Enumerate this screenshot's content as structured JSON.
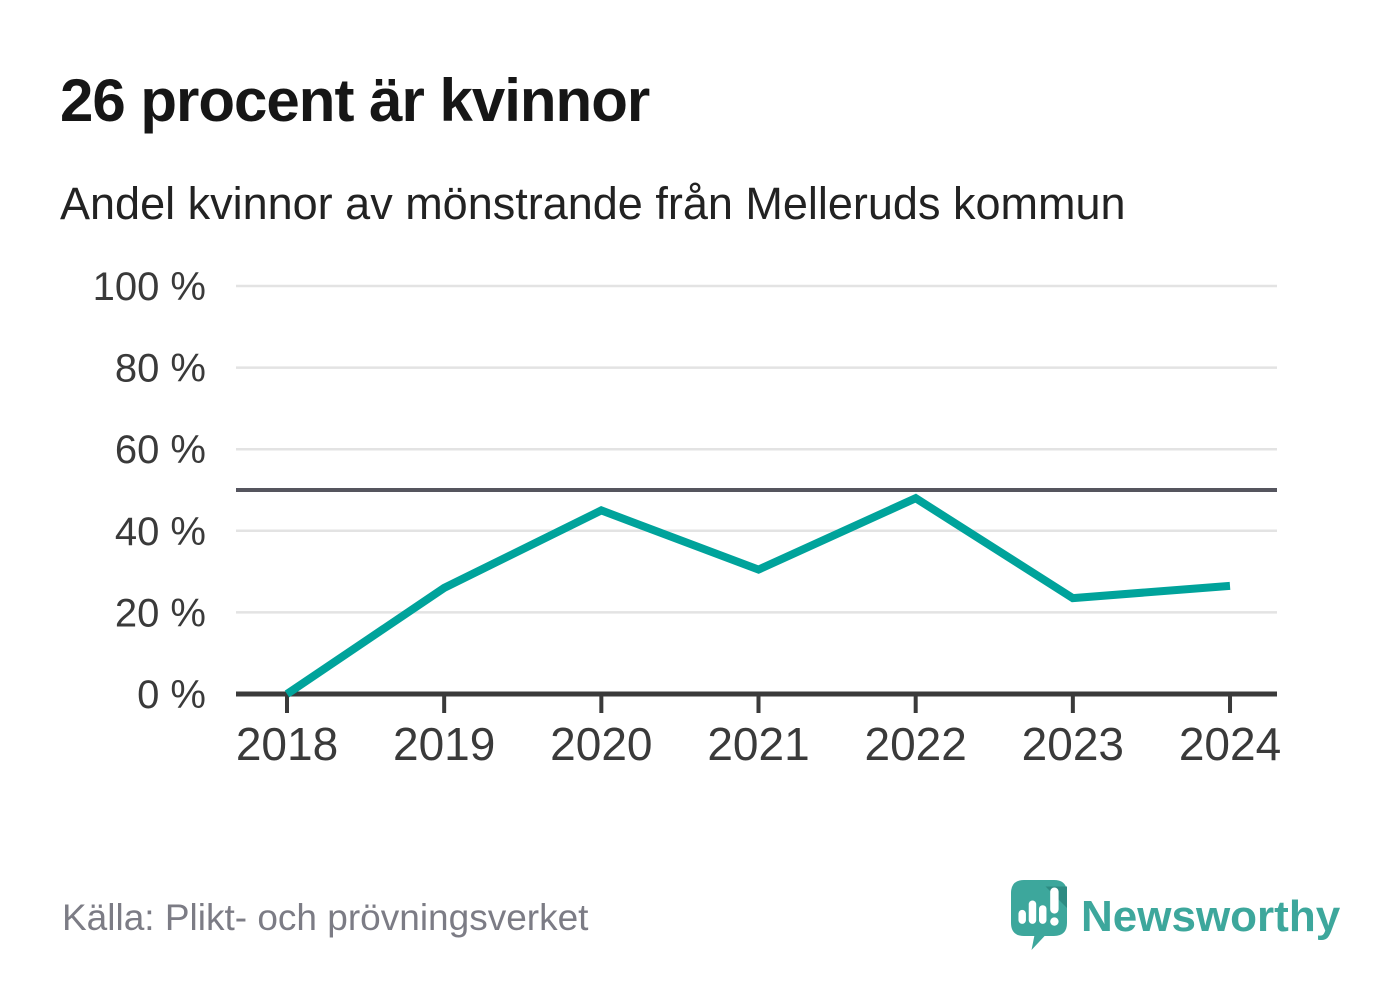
{
  "header": {
    "title": "26 procent är kvinnor",
    "subtitle": "Andel kvinnor av mönstrande från Melleruds kommun"
  },
  "chart_data": {
    "type": "line",
    "x": [
      "2018",
      "2019",
      "2020",
      "2021",
      "2022",
      "2023",
      "2024"
    ],
    "series": [
      {
        "name": "Andel kvinnor av mönstrande",
        "values": [
          0,
          26,
          45,
          30.5,
          48,
          23.5,
          26.5
        ]
      }
    ],
    "title": "26 procent är kvinnor",
    "subtitle": "Andel kvinnor av mönstrande från Melleruds kommun",
    "xlabel": "",
    "ylabel": "",
    "ylim": [
      0,
      100
    ],
    "yticks": [
      0,
      20,
      40,
      60,
      80,
      100
    ],
    "ytick_suffix": " %",
    "reference_line": {
      "value": 50
    },
    "grid": true,
    "legend_position": "none",
    "colors": {
      "line": "#00a39b",
      "grid": "#e3e3e3",
      "axis": "#3a3a3a",
      "reference": "#55555e",
      "tick_label": "#3a3a3a"
    }
  },
  "footer": {
    "source": "Källa: Plikt- och prövningsverket",
    "brand": "Newsworthy",
    "brand_color": "#3da79c"
  }
}
